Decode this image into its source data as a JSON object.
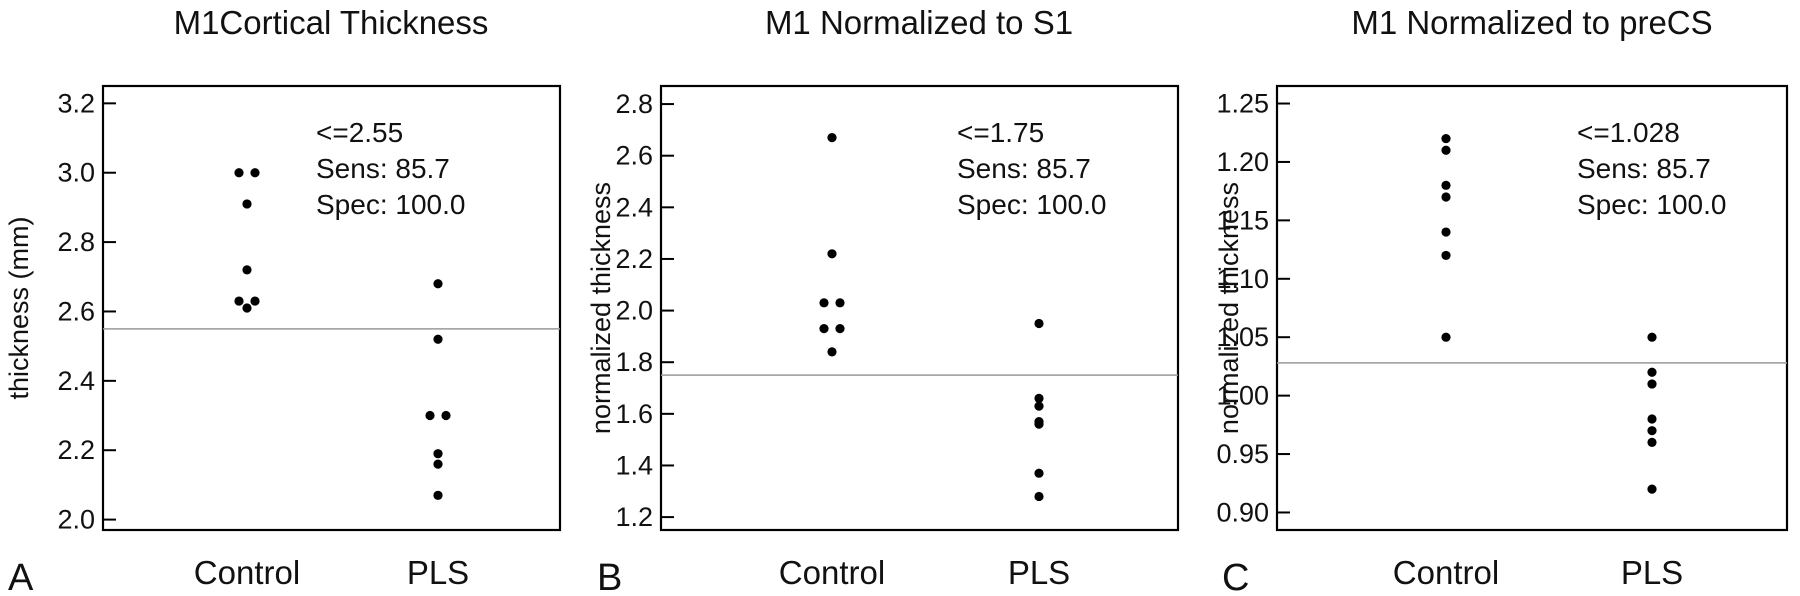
{
  "chart_data": [
    {
      "type": "scatter",
      "panel_letter": "A",
      "title": "M1Cortical Thickness",
      "ylabel": "thickness (mm)",
      "categories": [
        "Control",
        "PLS"
      ],
      "ylim": [
        1.97,
        3.25
      ],
      "yticks": [
        "2.0",
        "2.2",
        "2.4",
        "2.6",
        "2.8",
        "3.0",
        "3.2"
      ],
      "cutoff": 2.55,
      "annotations": [
        "<=2.55",
        "Sens: 85.7",
        "Spec: 100.0"
      ],
      "series": [
        {
          "category": "Control",
          "points": [
            {
              "y": 3.0,
              "offset": -1
            },
            {
              "y": 3.0,
              "offset": 1
            },
            {
              "y": 2.91,
              "offset": 0
            },
            {
              "y": 2.72,
              "offset": 0
            },
            {
              "y": 2.63,
              "offset": -1
            },
            {
              "y": 2.63,
              "offset": 1
            },
            {
              "y": 2.61,
              "offset": 0
            }
          ]
        },
        {
          "category": "PLS",
          "points": [
            {
              "y": 2.68,
              "offset": 0
            },
            {
              "y": 2.52,
              "offset": 0
            },
            {
              "y": 2.3,
              "offset": -1
            },
            {
              "y": 2.3,
              "offset": 1
            },
            {
              "y": 2.19,
              "offset": 0
            },
            {
              "y": 2.16,
              "offset": 0
            },
            {
              "y": 2.07,
              "offset": 0
            }
          ]
        }
      ]
    },
    {
      "type": "scatter",
      "panel_letter": "B",
      "title": "M1 Normalized to S1",
      "ylabel": "normalized thickness",
      "categories": [
        "Control",
        "PLS"
      ],
      "ylim": [
        1.15,
        2.87
      ],
      "yticks": [
        "1.2",
        "1.4",
        "1.6",
        "1.8",
        "2.0",
        "2.2",
        "2.4",
        "2.6",
        "2.8"
      ],
      "cutoff": 1.75,
      "annotations": [
        "<=1.75",
        "Sens: 85.7",
        "Spec: 100.0"
      ],
      "series": [
        {
          "category": "Control",
          "points": [
            {
              "y": 2.67,
              "offset": 0
            },
            {
              "y": 2.22,
              "offset": 0
            },
            {
              "y": 2.03,
              "offset": -1
            },
            {
              "y": 2.03,
              "offset": 1
            },
            {
              "y": 1.93,
              "offset": -1
            },
            {
              "y": 1.93,
              "offset": 1
            },
            {
              "y": 1.84,
              "offset": 0
            }
          ]
        },
        {
          "category": "PLS",
          "points": [
            {
              "y": 1.95,
              "offset": 0
            },
            {
              "y": 1.66,
              "offset": 0
            },
            {
              "y": 1.63,
              "offset": 0
            },
            {
              "y": 1.57,
              "offset": 0
            },
            {
              "y": 1.56,
              "offset": 0
            },
            {
              "y": 1.37,
              "offset": 0
            },
            {
              "y": 1.28,
              "offset": 0
            }
          ]
        }
      ]
    },
    {
      "type": "scatter",
      "panel_letter": "C",
      "title": "M1 Normalized to preCS",
      "ylabel": "normalized thickness",
      "categories": [
        "Control",
        "PLS"
      ],
      "ylim": [
        0.885,
        1.265
      ],
      "yticks": [
        "0.90",
        "0.95",
        "1.00",
        "1.05",
        "1.10",
        "1.15",
        "1.20",
        "1.25"
      ],
      "cutoff": 1.028,
      "annotations": [
        "<=1.028",
        "Sens: 85.7",
        "Spec: 100.0"
      ],
      "series": [
        {
          "category": "Control",
          "points": [
            {
              "y": 1.22,
              "offset": 0
            },
            {
              "y": 1.21,
              "offset": 0
            },
            {
              "y": 1.18,
              "offset": 0
            },
            {
              "y": 1.17,
              "offset": 0
            },
            {
              "y": 1.14,
              "offset": 0
            },
            {
              "y": 1.12,
              "offset": 0
            },
            {
              "y": 1.05,
              "offset": 0
            }
          ]
        },
        {
          "category": "PLS",
          "points": [
            {
              "y": 1.05,
              "offset": 0
            },
            {
              "y": 1.02,
              "offset": 0
            },
            {
              "y": 1.01,
              "offset": 0
            },
            {
              "y": 0.98,
              "offset": 0
            },
            {
              "y": 0.97,
              "offset": 0
            },
            {
              "y": 0.96,
              "offset": 0
            },
            {
              "y": 0.92,
              "offset": 0
            }
          ]
        }
      ]
    }
  ]
}
